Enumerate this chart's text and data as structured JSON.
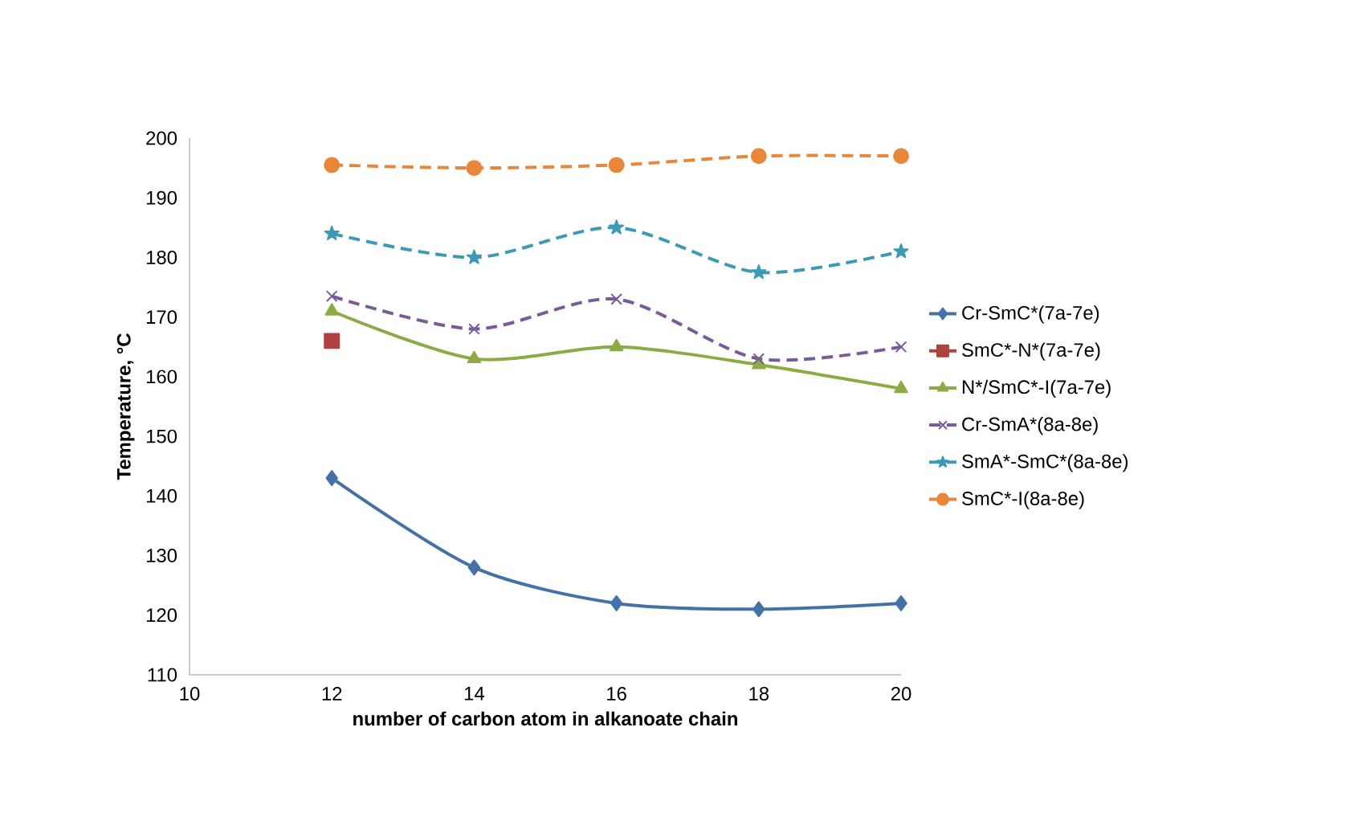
{
  "chart_data": {
    "type": "line",
    "xlabel": "number of carbon atom in alkanoate chain",
    "ylabel": "Temperature, °C",
    "x": [
      12,
      14,
      16,
      18,
      20
    ],
    "xlim": [
      10,
      20
    ],
    "xticks": [
      10,
      12,
      14,
      16,
      18,
      20
    ],
    "ylim": [
      110,
      200
    ],
    "yticks": [
      110,
      120,
      130,
      140,
      150,
      160,
      170,
      180,
      190,
      200
    ],
    "grid": false,
    "legend": "right",
    "series": [
      {
        "name": "Cr-SmC*(7a-7e)",
        "color": "#4472a8",
        "marker": "diamond",
        "line_style": "solid",
        "values": [
          143,
          128,
          122,
          121,
          122
        ]
      },
      {
        "name": "SmC*-N*(7a-7e)",
        "color": "#b0413e",
        "marker": "square",
        "line_style": "solid",
        "values": [
          166,
          null,
          null,
          null,
          null
        ]
      },
      {
        "name": "N*/SmC*-I(7a-7e)",
        "color": "#8cab44",
        "marker": "triangle",
        "line_style": "solid",
        "values": [
          171,
          163,
          165,
          162,
          158
        ]
      },
      {
        "name": "Cr-SmA*(8a-8e)",
        "color": "#7a5a99",
        "marker": "cross",
        "line_style": "dashed",
        "values": [
          173.5,
          168,
          173,
          163,
          165
        ]
      },
      {
        "name": "SmA*-SmC*(8a-8e)",
        "color": "#3c9ab5",
        "marker": "star",
        "line_style": "dashed",
        "values": [
          184,
          180,
          185,
          177.5,
          181
        ]
      },
      {
        "name": "SmC*-I(8a-8e)",
        "color": "#e8873a",
        "marker": "circle",
        "line_style": "dashed",
        "values": [
          195.5,
          195,
          195.5,
          197,
          197
        ]
      }
    ]
  }
}
